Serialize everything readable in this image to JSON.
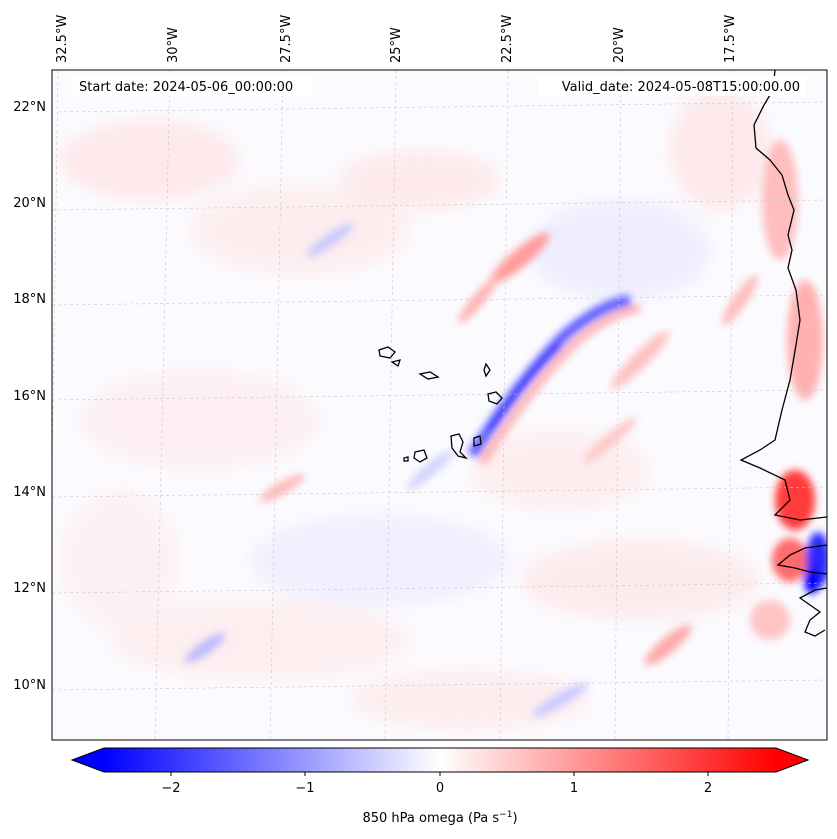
{
  "header": {
    "start_date": "Start date: 2024-05-06_00:00:00",
    "valid_date": "Valid_date: 2024-05-08T15:00:00.00"
  },
  "map": {
    "variable": "850 hPa omega",
    "lon_ticks": [
      "32.5°W",
      "30°W",
      "27.5°W",
      "25°W",
      "22.5°W",
      "20°W",
      "17.5°W"
    ],
    "lat_ticks": [
      "22°N",
      "20°N",
      "18°N",
      "16°N",
      "14°N",
      "12°N",
      "10°N"
    ],
    "gridlines": true,
    "coastlines": true,
    "colors": {
      "negative": "#0000ff",
      "zero": "#ffffff",
      "positive": "#ff0000",
      "coast": "#000000",
      "grid": "#bdbdbd"
    }
  },
  "colorbar": {
    "label": "850 hPa omega (Pa s",
    "label_exponent": "−1",
    "label_close": ")",
    "ticks": [
      "−2",
      "−1",
      "0",
      "1",
      "2"
    ],
    "range": [
      -2.5,
      2.5
    ],
    "extend": "both",
    "colormap": "bwr"
  }
}
